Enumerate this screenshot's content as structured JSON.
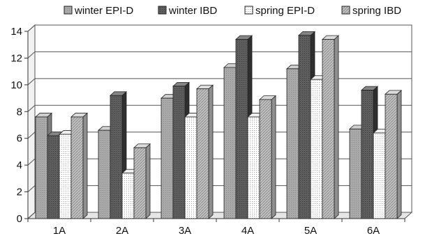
{
  "chart_data": {
    "type": "bar",
    "style": "3d-clustered",
    "title": "",
    "xlabel": "",
    "ylabel": "",
    "ylim": [
      0,
      14
    ],
    "yticks": [
      0,
      2,
      4,
      6,
      8,
      10,
      12,
      14
    ],
    "grid": "horizontal",
    "legend_position": "top",
    "categories": [
      "1A",
      "2A",
      "3A",
      "4A",
      "5A",
      "6A"
    ],
    "series": [
      {
        "name": "winter EPI-D",
        "values": [
          7.6,
          6.6,
          9.0,
          11.3,
          11.2,
          6.7
        ],
        "color": "#a6a6a6",
        "pattern": "solid"
      },
      {
        "name": "winter IBD",
        "values": [
          6.2,
          9.2,
          9.9,
          13.4,
          13.7,
          9.6
        ],
        "color": "#555555",
        "pattern": "dark"
      },
      {
        "name": "spring EPI-D",
        "values": [
          6.3,
          3.4,
          7.6,
          7.6,
          10.4,
          6.4
        ],
        "color": "#ffffff",
        "pattern": "dotted"
      },
      {
        "name": "spring IBD",
        "values": [
          7.6,
          5.3,
          9.7,
          8.9,
          13.4,
          9.3
        ],
        "color": "#bdbdbd",
        "pattern": "hatched"
      }
    ]
  }
}
